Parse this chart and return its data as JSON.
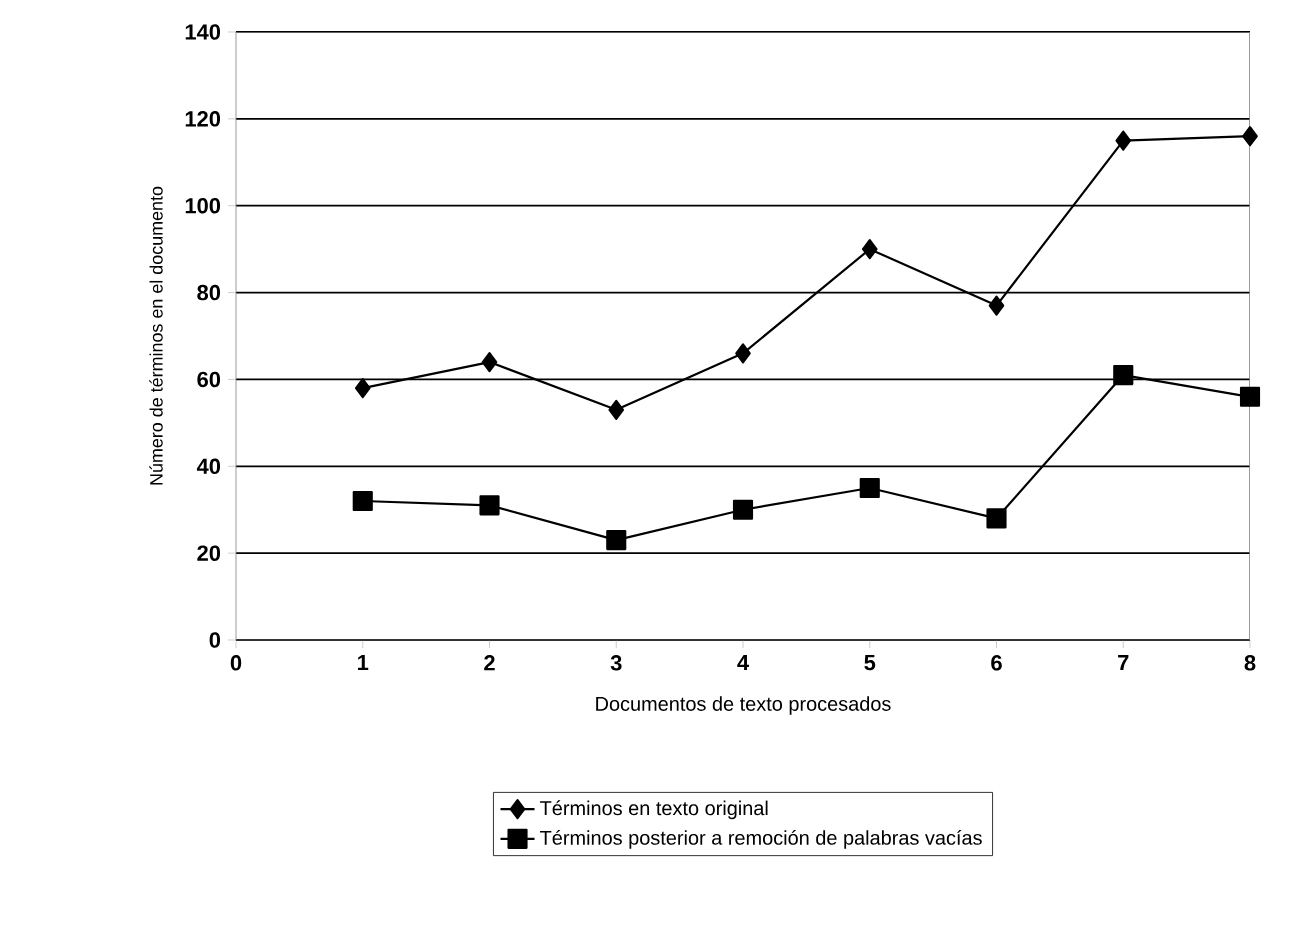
{
  "chart_data": {
    "type": "line",
    "xlabel": "Documentos de texto procesados",
    "ylabel": "Número de términos en el documento",
    "x": [
      1,
      2,
      3,
      4,
      5,
      6,
      7,
      8
    ],
    "series": [
      {
        "name": "Términos en texto original",
        "color": "#000000",
        "marker": "diamond",
        "values": [
          58,
          64,
          53,
          66,
          90,
          77,
          115,
          116
        ]
      },
      {
        "name": "Términos posterior a remoción de palabras vacías",
        "color": "#000000",
        "marker": "square",
        "values": [
          32,
          31,
          23,
          30,
          35,
          28,
          61,
          56
        ]
      }
    ],
    "xlim": [
      0,
      8
    ],
    "xticks": [
      0,
      1,
      2,
      3,
      4,
      5,
      6,
      7,
      8
    ],
    "ylim": [
      0,
      140
    ],
    "yticks": [
      0,
      20,
      40,
      60,
      80,
      100,
      120,
      140
    ],
    "grid": "y",
    "legend": "bottom",
    "line_style": "solid"
  }
}
